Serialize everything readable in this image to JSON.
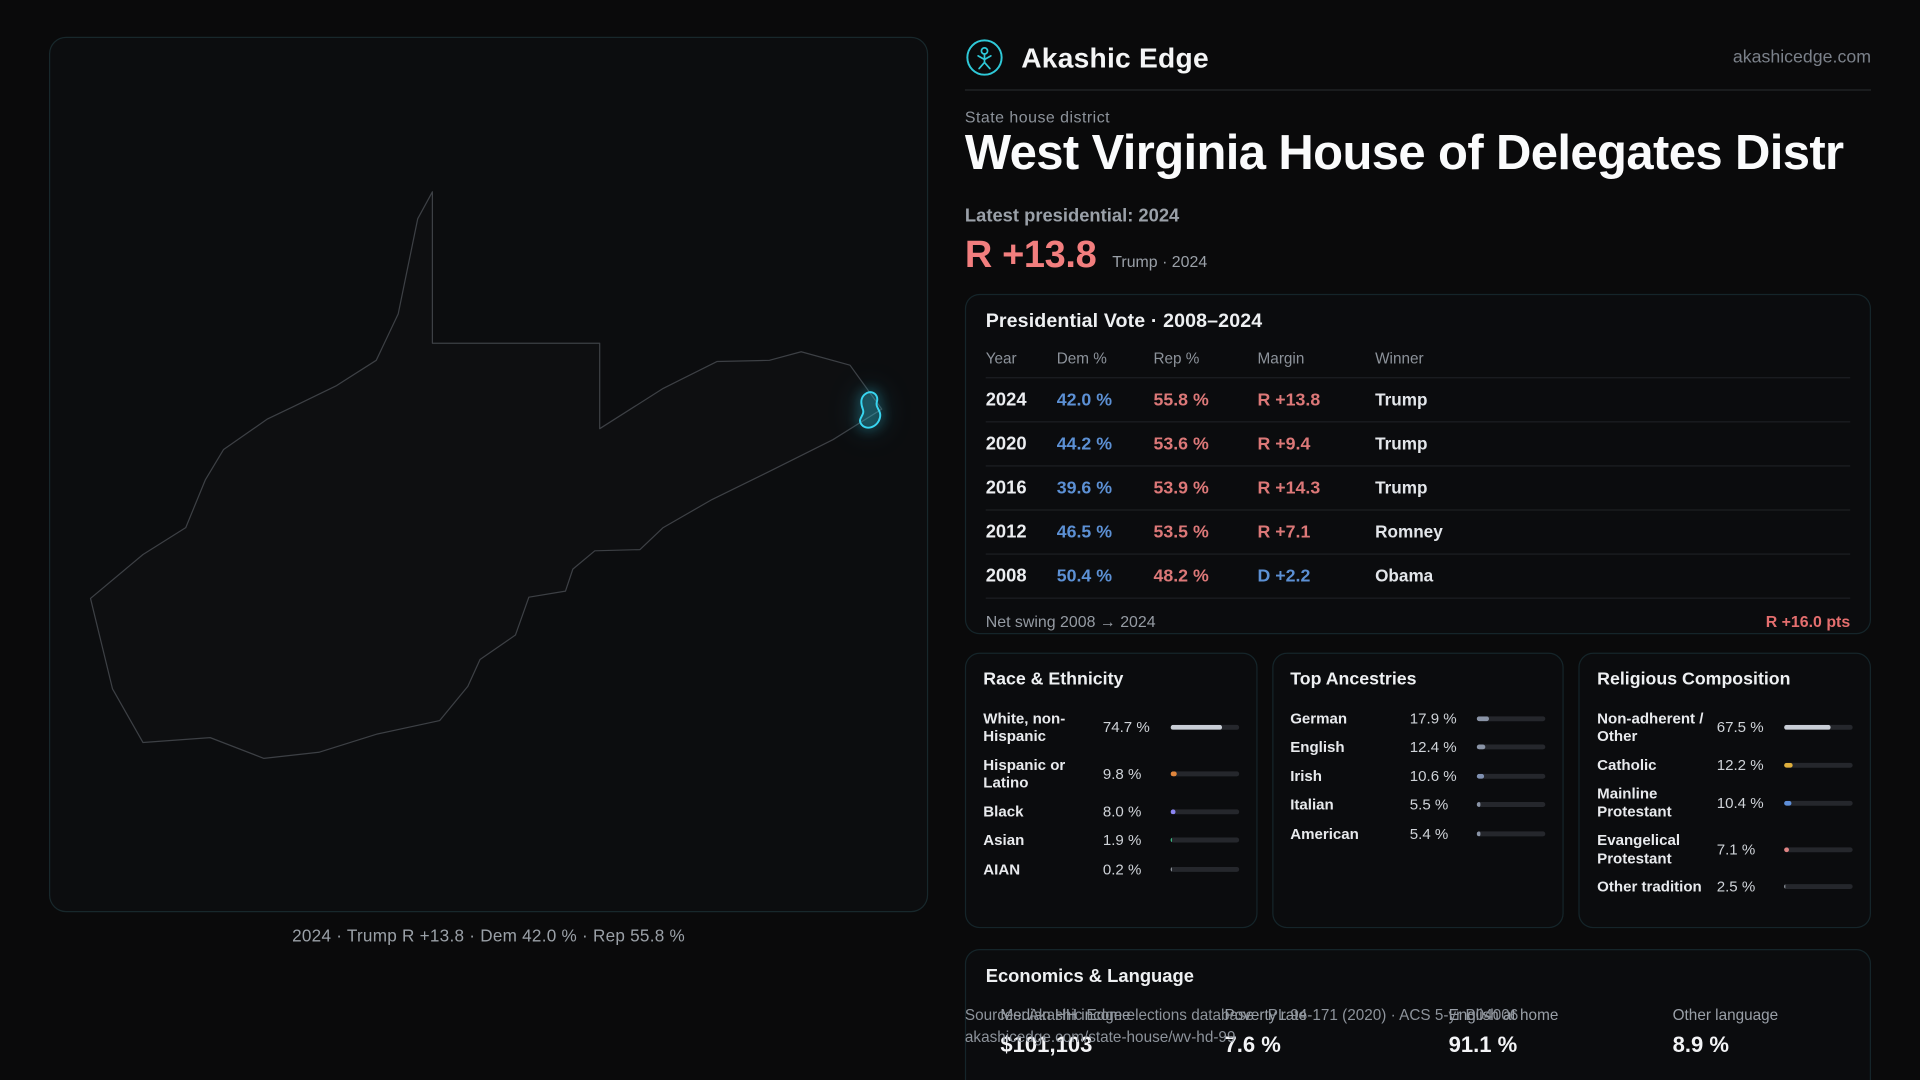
{
  "brand": {
    "name": "Akashic Edge",
    "domain": "akashicedge.com"
  },
  "map": {
    "caption": "2024 · Trump R +13.8 · Dem 42.0 % · Rep 55.8 %"
  },
  "header": {
    "eyebrow": "State house district",
    "title": "West Virginia House of Delegates Distr",
    "latest_label": "Latest presidential: 2024",
    "headline_margin": "R +13.8",
    "headline_context": "Trump · 2024"
  },
  "presidential": {
    "title": "Presidential Vote · 2008–2024",
    "columns": [
      "Year",
      "Dem %",
      "Rep %",
      "Margin",
      "Winner"
    ],
    "rows": [
      {
        "year": "2024",
        "dem": "42.0 %",
        "rep": "55.8 %",
        "margin": "R +13.8",
        "winner": "Trump"
      },
      {
        "year": "2020",
        "dem": "44.2 %",
        "rep": "53.6 %",
        "margin": "R +9.4",
        "winner": "Trump"
      },
      {
        "year": "2016",
        "dem": "39.6 %",
        "rep": "53.9 %",
        "margin": "R +14.3",
        "winner": "Trump"
      },
      {
        "year": "2012",
        "dem": "46.5 %",
        "rep": "53.5 %",
        "margin": "R +7.1",
        "winner": "Romney"
      },
      {
        "year": "2008",
        "dem": "50.4 %",
        "rep": "48.2 %",
        "margin": "D +2.2",
        "winner": "Obama"
      }
    ],
    "net_swing_label": "Net swing 2008 → 2024",
    "net_swing_value": "R +16.0 pts"
  },
  "demographics": [
    {
      "title": "Race & Ethnicity",
      "rows": [
        {
          "label": "White, non-Hispanic",
          "value": "74.7 %",
          "pct": 74.7,
          "color": "#c9ced6"
        },
        {
          "label": "Hispanic or Latino",
          "value": "9.8 %",
          "pct": 9.8,
          "color": "#e0863c"
        },
        {
          "label": "Black",
          "value": "8.0 %",
          "pct": 8.0,
          "color": "#8b85f2"
        },
        {
          "label": "Asian",
          "value": "1.9 %",
          "pct": 1.9,
          "color": "#3ecf8e"
        },
        {
          "label": "AIAN",
          "value": "0.2 %",
          "pct": 0.2,
          "color": "#9aa0a8"
        }
      ]
    },
    {
      "title": "Top Ancestries",
      "rows": [
        {
          "label": "German",
          "value": "17.9 %",
          "pct": 17.9,
          "color": "#8a94a6"
        },
        {
          "label": "English",
          "value": "12.4 %",
          "pct": 12.4,
          "color": "#8a94a6"
        },
        {
          "label": "Irish",
          "value": "10.6 %",
          "pct": 10.6,
          "color": "#7f90b0"
        },
        {
          "label": "Italian",
          "value": "5.5 %",
          "pct": 5.5,
          "color": "#8a94a6"
        },
        {
          "label": "American",
          "value": "5.4 %",
          "pct": 5.4,
          "color": "#8a94a6"
        }
      ]
    },
    {
      "title": "Religious Composition",
      "rows": [
        {
          "label": "Non-adherent / Other",
          "value": "67.5 %",
          "pct": 67.5,
          "color": "#c9ced6"
        },
        {
          "label": "Catholic",
          "value": "12.2 %",
          "pct": 12.2,
          "color": "#dfaf3c"
        },
        {
          "label": "Mainline Protestant",
          "value": "10.4 %",
          "pct": 10.4,
          "color": "#5d8ed8"
        },
        {
          "label": "Evangelical Protestant",
          "value": "7.1 %",
          "pct": 7.1,
          "color": "#e08484"
        },
        {
          "label": "Other tradition",
          "value": "2.5 %",
          "pct": 2.5,
          "color": "#9aa0a8"
        }
      ]
    }
  ],
  "economics": {
    "title": "Economics & Language",
    "stats": [
      {
        "label": "Median HH income",
        "value": "$101,103"
      },
      {
        "label": "Poverty rate",
        "value": "7.6 %"
      },
      {
        "label": "English at home",
        "value": "91.1 %"
      },
      {
        "label": "Other language",
        "value": "8.9 %"
      }
    ]
  },
  "footer": {
    "line1": "Sources: Akashic Edge elections database · PL 94-171 (2020) · ACS 5-yr B04006",
    "line2": "akashicedge.com/state-house/wv-hd-99"
  },
  "colors": {
    "accent_cyan": "#38d5f0",
    "dem_blue": "#5c90d4",
    "rep_red": "#dc7878",
    "headline_red": "#f27e7e"
  }
}
